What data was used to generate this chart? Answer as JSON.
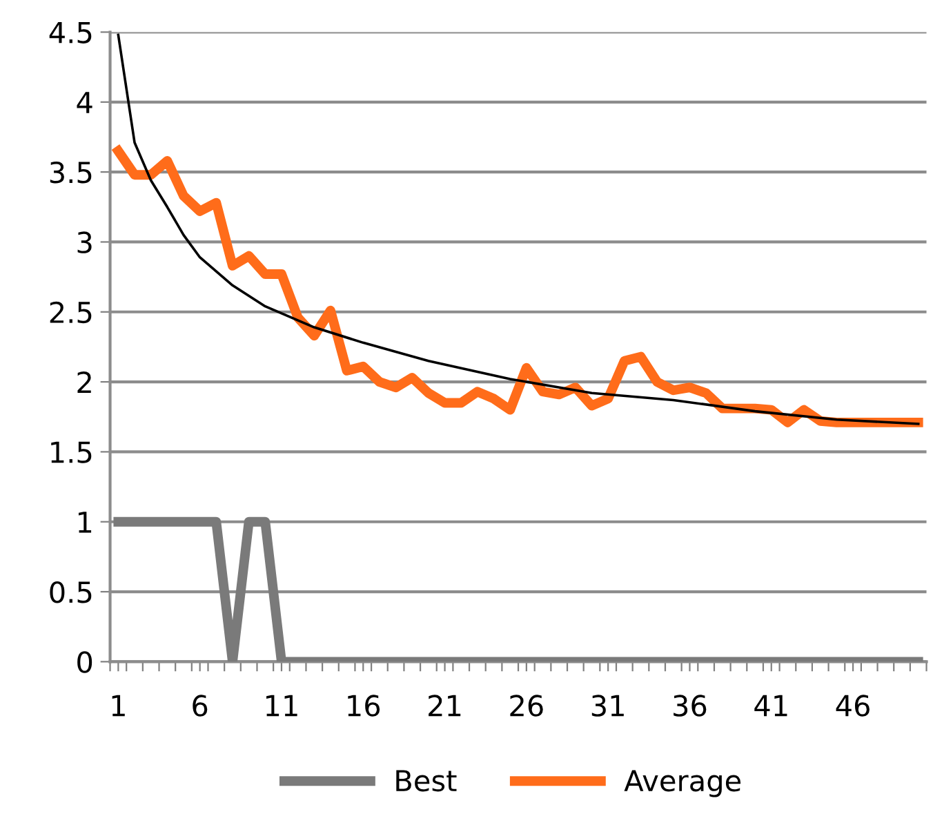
{
  "chart_data": {
    "type": "line",
    "x": [
      1,
      2,
      3,
      4,
      5,
      6,
      7,
      8,
      9,
      10,
      11,
      12,
      13,
      14,
      15,
      16,
      17,
      18,
      19,
      20,
      21,
      22,
      23,
      24,
      25,
      26,
      27,
      28,
      29,
      30,
      31,
      32,
      33,
      34,
      35,
      36,
      37,
      38,
      39,
      40,
      41,
      42,
      43,
      44,
      45,
      46,
      47,
      48,
      49,
      50
    ],
    "series": [
      {
        "name": "Best",
        "color": "#7a7a7a",
        "values": [
          1,
          1,
          1,
          1,
          1,
          1,
          1,
          0,
          1,
          1,
          0,
          0,
          0,
          0,
          0,
          0,
          0,
          0,
          0,
          0,
          0,
          0,
          0,
          0,
          0,
          0,
          0,
          0,
          0,
          0,
          0,
          0,
          0,
          0,
          0,
          0,
          0,
          0,
          0,
          0,
          0,
          0,
          0,
          0,
          0,
          0,
          0,
          0,
          0,
          0
        ]
      },
      {
        "name": "Average",
        "color": "#ff6c1a",
        "values": [
          3.65,
          3.48,
          3.48,
          3.58,
          3.33,
          3.22,
          3.28,
          2.83,
          2.9,
          2.77,
          2.77,
          2.46,
          2.33,
          2.51,
          2.08,
          2.11,
          2.0,
          1.96,
          2.03,
          1.92,
          1.85,
          1.85,
          1.93,
          1.88,
          1.8,
          2.1,
          1.93,
          1.91,
          1.96,
          1.83,
          1.88,
          2.15,
          2.18,
          2.0,
          1.94,
          1.96,
          1.92,
          1.81,
          1.81,
          1.81,
          1.8,
          1.71,
          1.8,
          1.72,
          1.71,
          1.71,
          1.71,
          1.71,
          1.71,
          1.71
        ]
      },
      {
        "color": "#000000",
        "x": [
          1,
          2,
          3,
          4,
          5,
          6,
          8,
          10,
          13,
          16,
          20,
          25,
          30,
          35,
          40,
          45,
          50
        ],
        "values": [
          4.48,
          3.71,
          3.44,
          3.25,
          3.05,
          2.89,
          2.69,
          2.54,
          2.39,
          2.28,
          2.15,
          2.02,
          1.92,
          1.87,
          1.79,
          1.73,
          1.7
        ]
      }
    ],
    "xlim": [
      0.5,
      50.5
    ],
    "xticks": [
      {
        "value": 1,
        "label": "1"
      },
      {
        "value": 6,
        "label": "6"
      },
      {
        "value": 11,
        "label": "11"
      },
      {
        "value": 16,
        "label": "16"
      },
      {
        "value": 21,
        "label": "21"
      },
      {
        "value": 26,
        "label": "26"
      },
      {
        "value": 31,
        "label": "31"
      },
      {
        "value": 36,
        "label": "36"
      },
      {
        "value": 41,
        "label": "41"
      },
      {
        "value": 46,
        "label": "46"
      },
      {
        "value": 0.5,
        "label": null
      },
      {
        "value": 1.5,
        "label": null
      },
      {
        "value": 2.5,
        "label": null
      },
      {
        "value": 3.5,
        "label": null
      },
      {
        "value": 4.5,
        "label": null
      },
      {
        "value": 5.5,
        "label": null
      },
      {
        "value": 6.5,
        "label": null
      },
      {
        "value": 7.5,
        "label": null
      },
      {
        "value": 8.5,
        "label": null
      },
      {
        "value": 9.5,
        "label": null
      },
      {
        "value": 10.5,
        "label": null
      },
      {
        "value": 11.5,
        "label": null
      },
      {
        "value": 12.5,
        "label": null
      },
      {
        "value": 13.5,
        "label": null
      },
      {
        "value": 14.5,
        "label": null
      },
      {
        "value": 15.5,
        "label": null
      },
      {
        "value": 16.5,
        "label": null
      },
      {
        "value": 17.5,
        "label": null
      },
      {
        "value": 18.5,
        "label": null
      },
      {
        "value": 19.5,
        "label": null
      },
      {
        "value": 20.5,
        "label": null
      },
      {
        "value": 21.5,
        "label": null
      },
      {
        "value": 22.5,
        "label": null
      },
      {
        "value": 23.5,
        "label": null
      },
      {
        "value": 24.5,
        "label": null
      },
      {
        "value": 25.5,
        "label": null
      },
      {
        "value": 26.5,
        "label": null
      },
      {
        "value": 27.5,
        "label": null
      },
      {
        "value": 28.5,
        "label": null
      },
      {
        "value": 29.5,
        "label": null
      },
      {
        "value": 30.5,
        "label": null
      },
      {
        "value": 31.5,
        "label": null
      },
      {
        "value": 32.5,
        "label": null
      },
      {
        "value": 33.5,
        "label": null
      },
      {
        "value": 34.5,
        "label": null
      },
      {
        "value": 35.5,
        "label": null
      },
      {
        "value": 36.5,
        "label": null
      },
      {
        "value": 37.5,
        "label": null
      },
      {
        "value": 38.5,
        "label": null
      },
      {
        "value": 39.5,
        "label": null
      },
      {
        "value": 40.5,
        "label": null
      },
      {
        "value": 41.5,
        "label": null
      },
      {
        "value": 42.5,
        "label": null
      },
      {
        "value": 43.5,
        "label": null
      },
      {
        "value": 44.5,
        "label": null
      },
      {
        "value": 45.5,
        "label": null
      },
      {
        "value": 46.5,
        "label": null
      },
      {
        "value": 47.5,
        "label": null
      },
      {
        "value": 48.5,
        "label": null
      },
      {
        "value": 49.5,
        "label": null
      },
      {
        "value": 50.5,
        "label": null
      }
    ],
    "ylim": [
      0,
      4.5
    ],
    "yticks": [
      0,
      0.5,
      1,
      1.5,
      2,
      2.5,
      3,
      3.5,
      4,
      4.5
    ],
    "grid": "y",
    "legend": "bottom",
    "marker": "none",
    "line_style": "solid"
  }
}
